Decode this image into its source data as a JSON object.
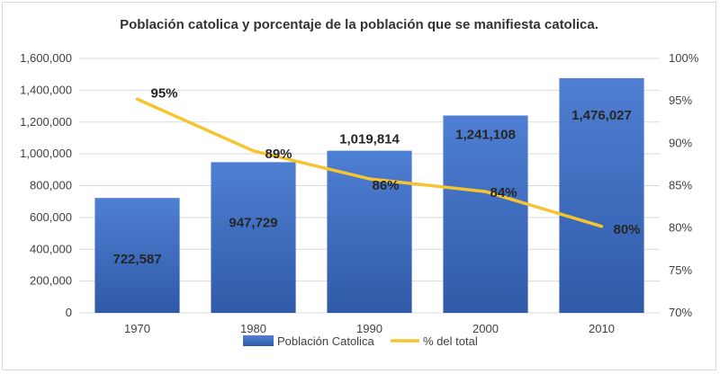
{
  "chart_data": {
    "type": "bar+line",
    "title": "Población catolica y porcentaje de la población que se  manifiesta catolica.",
    "categories": [
      "1970",
      "1980",
      "1990",
      "2000",
      "2010"
    ],
    "series": [
      {
        "name": "Población Catolica",
        "type": "bar",
        "axis": "left",
        "color": "#4472c4",
        "values": [
          722587,
          947729,
          1019814,
          1241108,
          1476027
        ],
        "labels": [
          "722,587",
          "947,729",
          "1,019,814",
          "1,241,108",
          "1,476,027"
        ]
      },
      {
        "name": "% del total",
        "type": "line",
        "axis": "right",
        "color": "#f5c431",
        "values": [
          95.2,
          89.1,
          85.8,
          84.3,
          80.2
        ],
        "labels": [
          "95%",
          "89%",
          "86%",
          "84%",
          "80%"
        ]
      }
    ],
    "y_left": {
      "range": [
        0,
        1600000
      ],
      "ticks": [
        0,
        200000,
        400000,
        600000,
        800000,
        1000000,
        1200000,
        1400000,
        1600000
      ],
      "tick_labels": [
        "0",
        "200,000",
        "400,000",
        "600,000",
        "800,000",
        "1,000,000",
        "1,200,000",
        "1,400,000",
        "1,600,000"
      ]
    },
    "y_right": {
      "range": [
        70,
        100
      ],
      "ticks": [
        70,
        75,
        80,
        85,
        90,
        95,
        100
      ],
      "tick_labels": [
        "70%",
        "75%",
        "80%",
        "85%",
        "90%",
        "95%",
        "100%"
      ]
    },
    "grid": true,
    "legend_position": "bottom"
  }
}
